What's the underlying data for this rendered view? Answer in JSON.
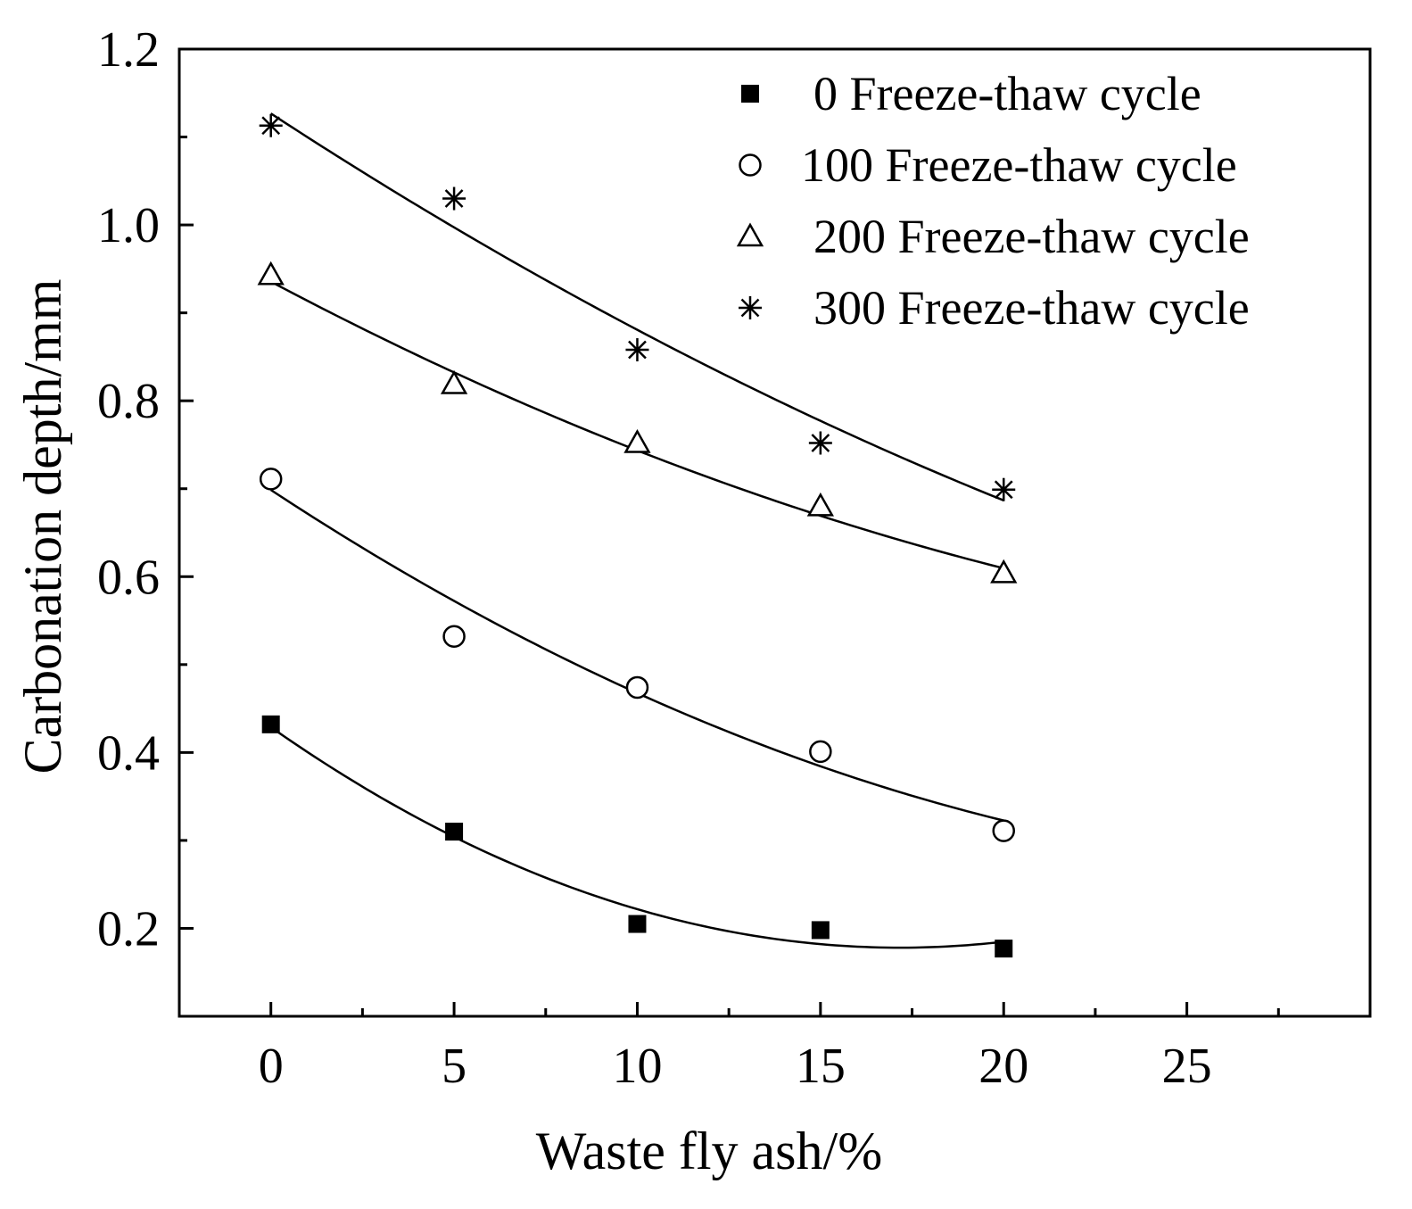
{
  "chart_data": {
    "type": "scatter",
    "title": "",
    "xlabel": "Waste fly ash/%",
    "ylabel": "Carbonation depth/mm",
    "xlim": [
      -2.5,
      30
    ],
    "ylim": [
      0.1,
      1.2
    ],
    "xticks": [
      0,
      5,
      10,
      15,
      20,
      25
    ],
    "xtick_labels": [
      "0",
      "5",
      "10",
      "15",
      "20",
      "25"
    ],
    "yticks": [
      0.2,
      0.4,
      0.6,
      0.8,
      1.0,
      1.2
    ],
    "ytick_labels": [
      "0.2",
      "0.4",
      "0.6",
      "0.8",
      "1.0",
      "1.2"
    ],
    "grid": false,
    "legend_position": "top-right",
    "series": [
      {
        "name": "0 Freeze-thaw cycle",
        "marker": "filled-square",
        "x": [
          0,
          5,
          10,
          15,
          20
        ],
        "values": [
          0.432,
          0.31,
          0.205,
          0.198,
          0.177
        ],
        "fit": [
          0.4288,
          -0.0292,
          0.00085
        ]
      },
      {
        "name": "100 Freeze-thaw cycle",
        "marker": "open-circle",
        "x": [
          0,
          5,
          10,
          15,
          20
        ],
        "values": [
          0.711,
          0.532,
          0.474,
          0.401,
          0.311
        ],
        "fit": [
          0.6986,
          -0.0274,
          0.00043
        ]
      },
      {
        "name": "200 Freeze-thaw cycle",
        "marker": "open-triangle",
        "x": [
          0,
          5,
          10,
          15,
          20
        ],
        "values": [
          0.943,
          0.819,
          0.752,
          0.68,
          0.604
        ],
        "fit": [
          0.9355,
          -0.0221,
          0.00029
        ]
      },
      {
        "name": "300 Freeze-thaw cycle",
        "marker": "asterisk",
        "x": [
          0,
          5,
          10,
          15,
          20
        ],
        "values": [
          1.113,
          1.03,
          0.858,
          0.752,
          0.699
        ],
        "fit": [
          1.1267,
          -0.0272,
          0.00026
        ]
      }
    ]
  }
}
